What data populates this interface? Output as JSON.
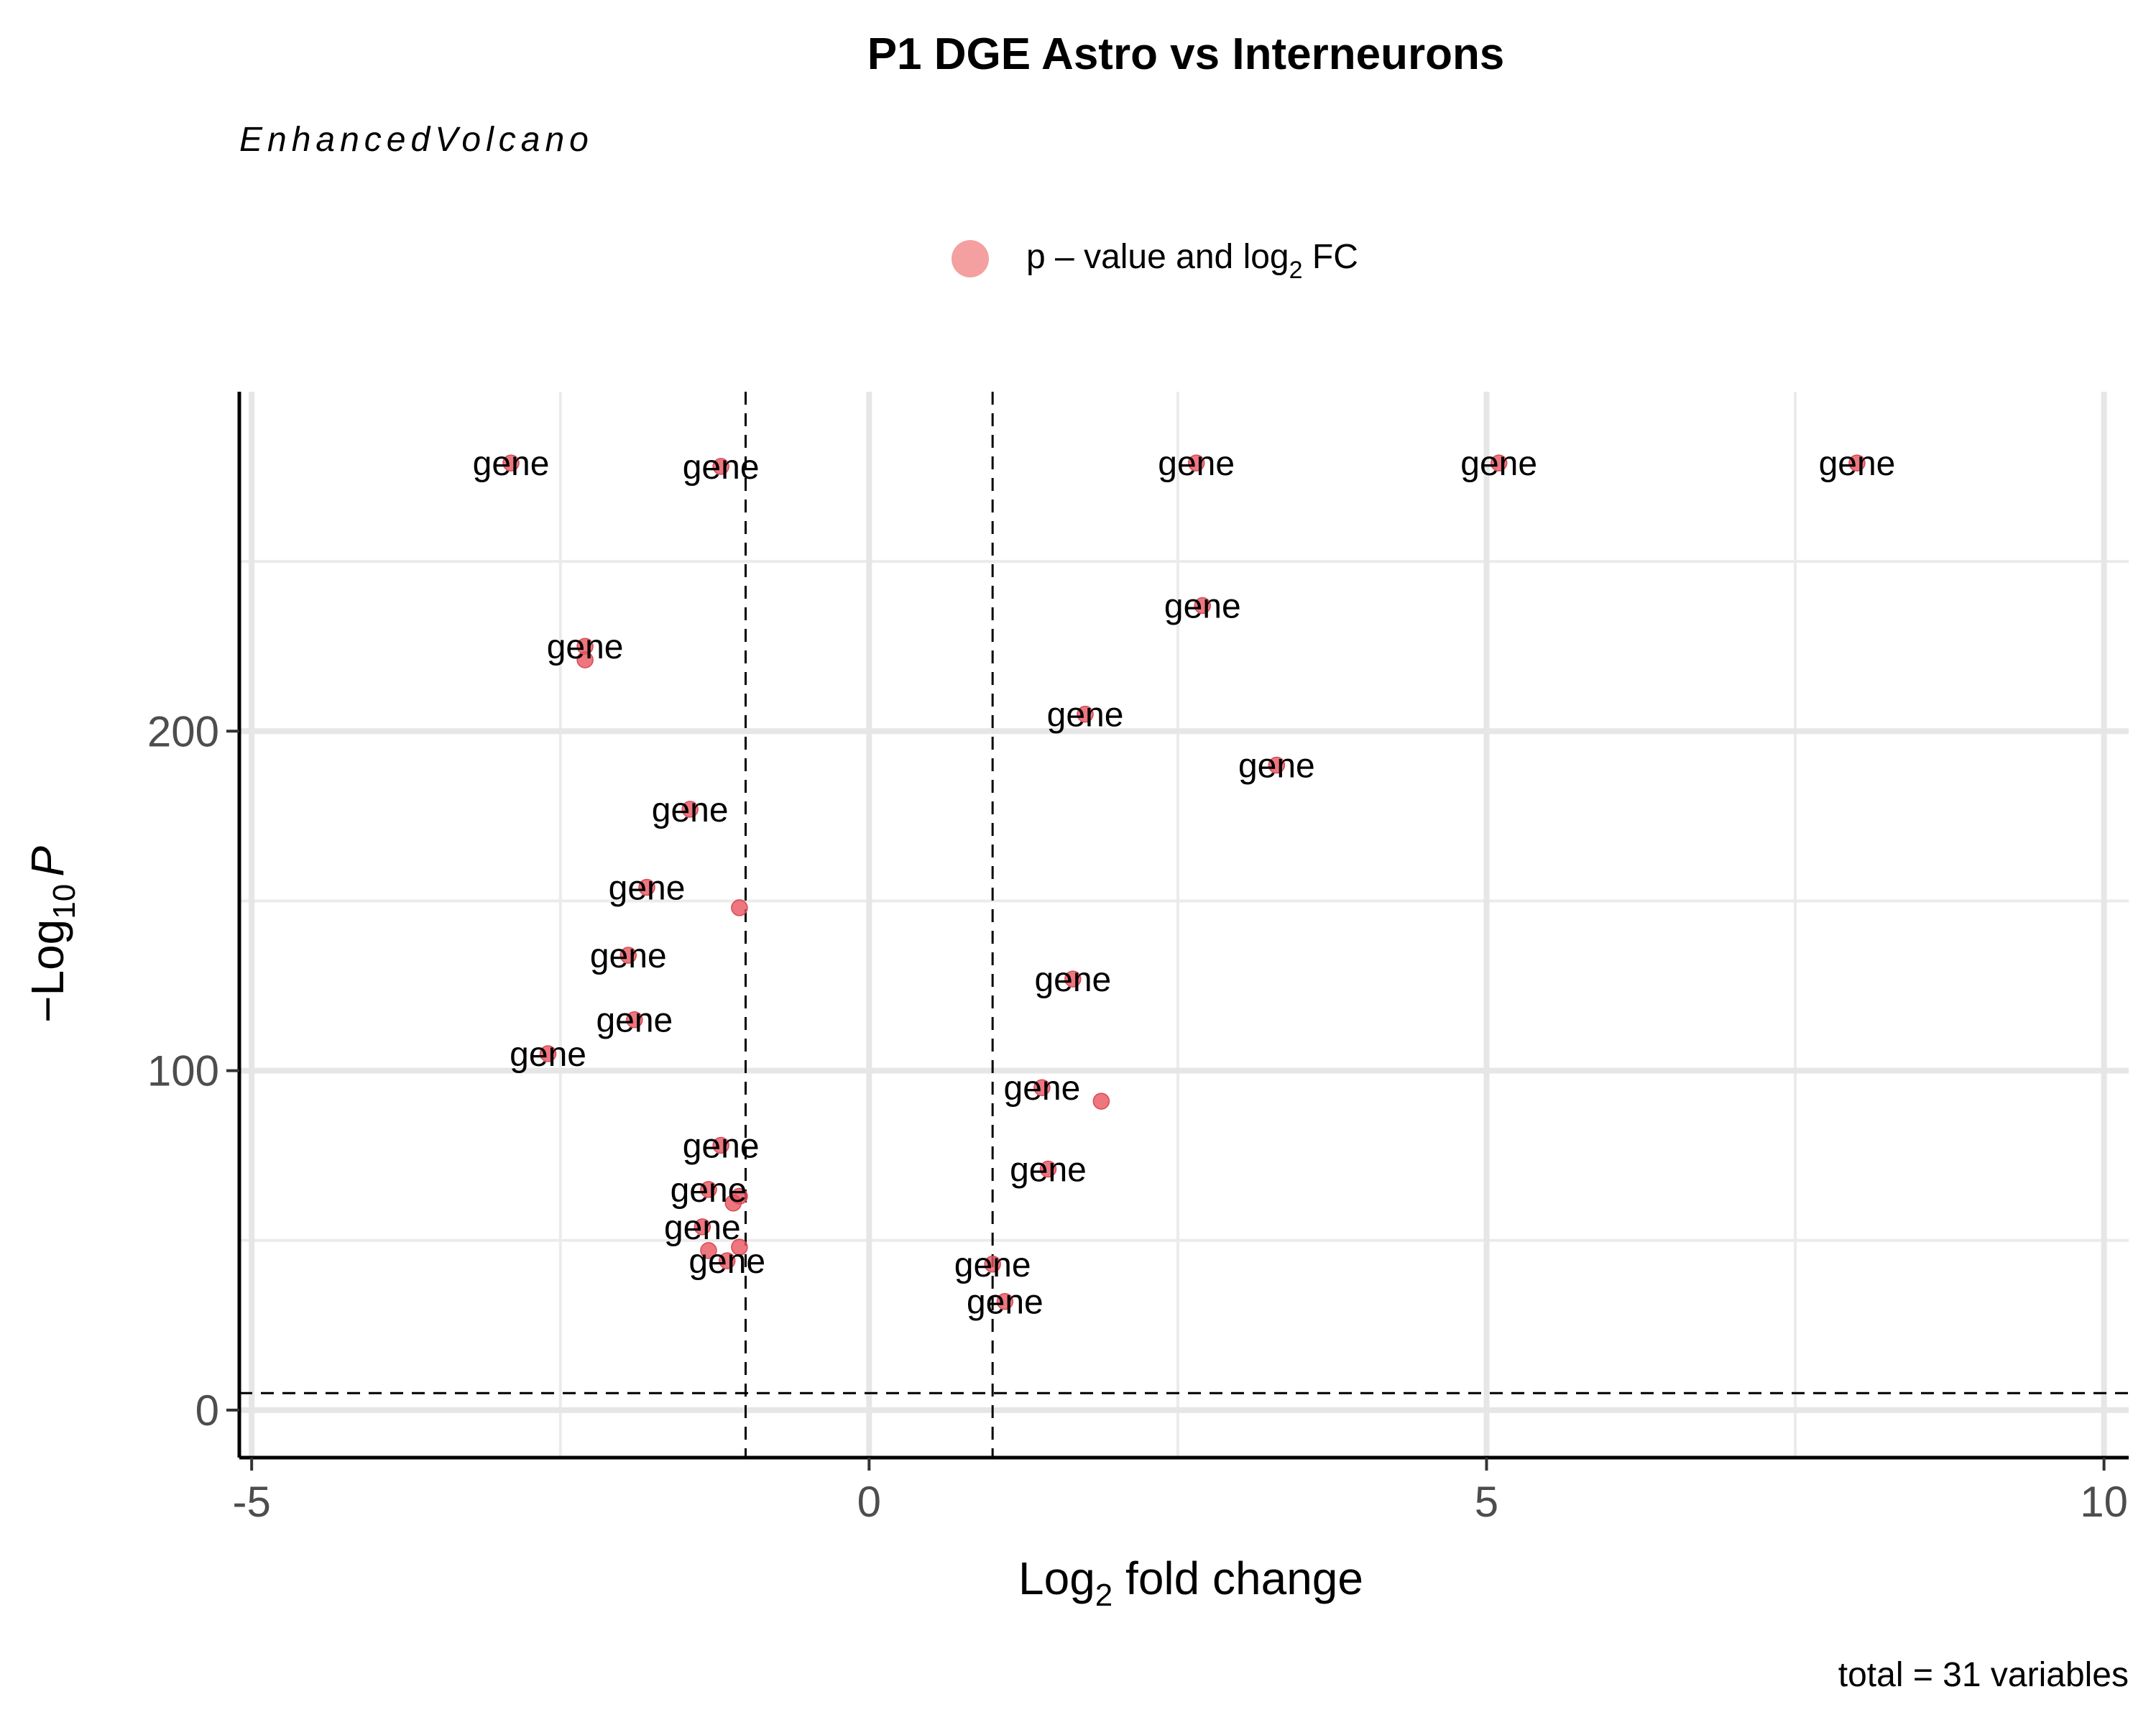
{
  "chart_data": {
    "type": "scatter",
    "title": "P1 DGE Astro vs Interneurons",
    "subtitle": "EnhancedVolcano",
    "xlabel": {
      "base": "Log",
      "sub": "2",
      "rest": " fold change"
    },
    "ylabel": {
      "prefix": "−Log",
      "sub": "10",
      "var": "P"
    },
    "legend": {
      "placement": "top",
      "label_pre": "p – value and log",
      "label_sub": "2",
      "label_post": " FC",
      "color": "#f08080"
    },
    "caption": "total = 31 variables",
    "xlim": [
      -5.1,
      10.2
    ],
    "ylim": [
      -14,
      300
    ],
    "x_ticks": [
      -5,
      0,
      5,
      10
    ],
    "x_tick_labels": [
      "-5",
      "0",
      "5",
      "10"
    ],
    "y_ticks": [
      0,
      100,
      200
    ],
    "y_tick_labels": [
      "0",
      "100",
      "200"
    ],
    "x_minor_ticks": [
      -2.5,
      2.5,
      7.5
    ],
    "y_minor_ticks": [
      50,
      150,
      250
    ],
    "fc_cutoff": [
      -1,
      1
    ],
    "p_cutoff_neglog10": 5,
    "point_color": "#e8545f",
    "points": [
      {
        "x": -2.9,
        "y": 279,
        "label": "gene"
      },
      {
        "x": -1.2,
        "y": 278,
        "label": "gene"
      },
      {
        "x": 2.65,
        "y": 279,
        "label": "gene"
      },
      {
        "x": 5.1,
        "y": 279,
        "label": "gene"
      },
      {
        "x": 8.0,
        "y": 279,
        "label": "gene"
      },
      {
        "x": 2.7,
        "y": 237,
        "label": "gene"
      },
      {
        "x": -2.3,
        "y": 225,
        "label": "gene"
      },
      {
        "x": -2.3,
        "y": 221,
        "label": ""
      },
      {
        "x": 1.75,
        "y": 205,
        "label": "gene"
      },
      {
        "x": 3.3,
        "y": 190,
        "label": "gene"
      },
      {
        "x": -1.45,
        "y": 177,
        "label": "gene"
      },
      {
        "x": -1.8,
        "y": 154,
        "label": "gene"
      },
      {
        "x": -1.05,
        "y": 148,
        "label": ""
      },
      {
        "x": -1.95,
        "y": 134,
        "label": "gene"
      },
      {
        "x": 1.65,
        "y": 127,
        "label": "gene"
      },
      {
        "x": -1.9,
        "y": 115,
        "label": "gene"
      },
      {
        "x": -2.6,
        "y": 105,
        "label": "gene"
      },
      {
        "x": 1.4,
        "y": 95,
        "label": "gene"
      },
      {
        "x": 1.88,
        "y": 91,
        "label": ""
      },
      {
        "x": -1.2,
        "y": 78,
        "label": "gene"
      },
      {
        "x": 1.45,
        "y": 71,
        "label": "gene"
      },
      {
        "x": -1.3,
        "y": 65,
        "label": "gene"
      },
      {
        "x": -1.05,
        "y": 63,
        "label": ""
      },
      {
        "x": -1.1,
        "y": 61,
        "label": ""
      },
      {
        "x": -1.35,
        "y": 54,
        "label": "gene"
      },
      {
        "x": -1.3,
        "y": 47,
        "label": ""
      },
      {
        "x": -1.05,
        "y": 48,
        "label": ""
      },
      {
        "x": -1.15,
        "y": 44,
        "label": "gene"
      },
      {
        "x": 1.0,
        "y": 43,
        "label": "gene"
      },
      {
        "x": 1.1,
        "y": 32,
        "label": "gene"
      }
    ]
  }
}
